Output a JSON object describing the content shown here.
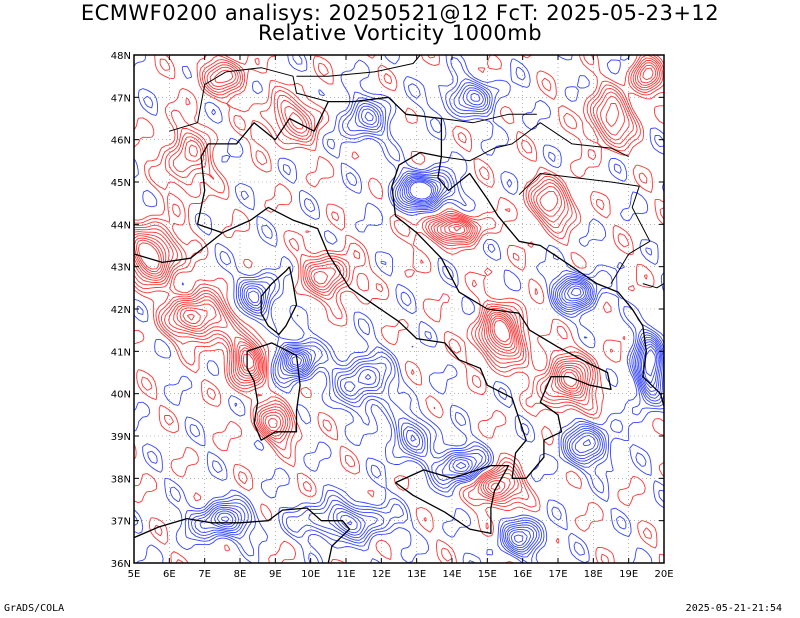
{
  "title": {
    "line1": "ECMWF0200 analisys: 20250521@12 FcT: 2025-05-23+12",
    "line2": "Relative Vorticity 1000mb"
  },
  "footer": {
    "left": "GrADS/COLA",
    "right": "2025-05-21-21:54"
  },
  "axes": {
    "lon_labels": [
      "5E",
      "6E",
      "7E",
      "8E",
      "9E",
      "10E",
      "11E",
      "12E",
      "13E",
      "14E",
      "15E",
      "16E",
      "17E",
      "18E",
      "19E",
      "20E"
    ],
    "lat_labels": [
      "36N",
      "37N",
      "38N",
      "39N",
      "40N",
      "41N",
      "42N",
      "43N",
      "44N",
      "45N",
      "46N",
      "47N",
      "48N"
    ],
    "lon_range": [
      5,
      20
    ],
    "lat_range": [
      36,
      48
    ]
  },
  "colors": {
    "positive": "#ff3333",
    "negative": "#3344ff",
    "border": "#000000",
    "grid": "#888888"
  },
  "field_centers": [
    {
      "lon": 5.5,
      "lat": 43.3,
      "sign": 1,
      "amp": 1.0,
      "sx": 0.7,
      "sy": 0.6
    },
    {
      "lon": 6.8,
      "lat": 41.8,
      "sign": 1,
      "amp": 0.9,
      "sx": 0.8,
      "sy": 0.5
    },
    {
      "lon": 8.2,
      "lat": 40.8,
      "sign": 1,
      "amp": 0.8,
      "sx": 0.5,
      "sy": 0.6
    },
    {
      "lon": 9.6,
      "lat": 40.8,
      "sign": -1,
      "amp": 0.9,
      "sx": 0.5,
      "sy": 0.4
    },
    {
      "lon": 9.0,
      "lat": 39.3,
      "sign": 1,
      "amp": 0.7,
      "sx": 0.5,
      "sy": 0.4
    },
    {
      "lon": 13.2,
      "lat": 44.8,
      "sign": -1,
      "amp": 1.0,
      "sx": 0.7,
      "sy": 0.4
    },
    {
      "lon": 14.0,
      "lat": 43.9,
      "sign": 1,
      "amp": 0.8,
      "sx": 0.8,
      "sy": 0.3
    },
    {
      "lon": 15.4,
      "lat": 41.4,
      "sign": 1,
      "amp": 0.9,
      "sx": 0.6,
      "sy": 0.6
    },
    {
      "lon": 17.5,
      "lat": 42.4,
      "sign": -1,
      "amp": 0.8,
      "sx": 0.6,
      "sy": 0.4
    },
    {
      "lon": 19.6,
      "lat": 40.6,
      "sign": -1,
      "amp": 0.9,
      "sx": 0.4,
      "sy": 0.8
    },
    {
      "lon": 17.3,
      "lat": 40.3,
      "sign": 1,
      "amp": 0.8,
      "sx": 0.7,
      "sy": 0.6
    },
    {
      "lon": 15.3,
      "lat": 37.8,
      "sign": 1,
      "amp": 0.8,
      "sx": 0.6,
      "sy": 0.4
    },
    {
      "lon": 14.2,
      "lat": 38.3,
      "sign": -1,
      "amp": 0.7,
      "sx": 0.7,
      "sy": 0.4
    },
    {
      "lon": 11.0,
      "lat": 37.0,
      "sign": -1,
      "amp": 0.6,
      "sx": 1.2,
      "sy": 0.4
    },
    {
      "lon": 7.5,
      "lat": 37.0,
      "sign": -1,
      "amp": 0.7,
      "sx": 0.8,
      "sy": 0.4
    },
    {
      "lon": 10.5,
      "lat": 42.8,
      "sign": 1,
      "amp": 0.6,
      "sx": 0.7,
      "sy": 0.5
    },
    {
      "lon": 8.5,
      "lat": 42.3,
      "sign": -1,
      "amp": 0.6,
      "sx": 0.5,
      "sy": 0.5
    },
    {
      "lon": 11.5,
      "lat": 40.3,
      "sign": -1,
      "amp": 0.6,
      "sx": 0.8,
      "sy": 0.6
    },
    {
      "lon": 18.5,
      "lat": 46.5,
      "sign": 1,
      "amp": 0.6,
      "sx": 0.6,
      "sy": 0.6
    },
    {
      "lon": 19.5,
      "lat": 47.5,
      "sign": 1,
      "amp": 0.6,
      "sx": 0.4,
      "sy": 0.4
    },
    {
      "lon": 9.5,
      "lat": 46.5,
      "sign": 1,
      "amp": 0.5,
      "sx": 0.8,
      "sy": 0.5
    },
    {
      "lon": 11.5,
      "lat": 46.5,
      "sign": -1,
      "amp": 0.5,
      "sx": 0.7,
      "sy": 0.5
    },
    {
      "lon": 7.5,
      "lat": 47.5,
      "sign": 1,
      "amp": 0.5,
      "sx": 0.7,
      "sy": 0.4
    },
    {
      "lon": 14.5,
      "lat": 47.0,
      "sign": -1,
      "amp": 0.5,
      "sx": 0.8,
      "sy": 0.4
    },
    {
      "lon": 16.8,
      "lat": 44.5,
      "sign": 1,
      "amp": 0.6,
      "sx": 0.6,
      "sy": 0.5
    },
    {
      "lon": 17.8,
      "lat": 38.8,
      "sign": -1,
      "amp": 0.6,
      "sx": 0.7,
      "sy": 0.5
    },
    {
      "lon": 12.8,
      "lat": 39.0,
      "sign": -1,
      "amp": 0.5,
      "sx": 0.6,
      "sy": 0.5
    },
    {
      "lon": 6.5,
      "lat": 45.5,
      "sign": 1,
      "amp": 0.5,
      "sx": 0.6,
      "sy": 0.8
    },
    {
      "lon": 16.0,
      "lat": 36.6,
      "sign": -1,
      "amp": 0.6,
      "sx": 0.6,
      "sy": 0.4
    }
  ],
  "coastlines": [
    {
      "name": "italy-mainland",
      "points": [
        [
          6.8,
          44.0
        ],
        [
          7.5,
          43.8
        ],
        [
          8.3,
          44.1
        ],
        [
          8.8,
          44.4
        ],
        [
          9.5,
          44.1
        ],
        [
          10.2,
          43.9
        ],
        [
          10.5,
          43.3
        ],
        [
          11.1,
          42.5
        ],
        [
          11.8,
          42.1
        ],
        [
          12.5,
          41.7
        ],
        [
          13.0,
          41.3
        ],
        [
          13.8,
          41.2
        ],
        [
          14.2,
          40.8
        ],
        [
          14.8,
          40.6
        ],
        [
          15.0,
          40.2
        ],
        [
          15.7,
          39.9
        ],
        [
          15.9,
          39.4
        ],
        [
          16.1,
          38.9
        ],
        [
          15.8,
          38.6
        ],
        [
          15.7,
          38.0
        ],
        [
          16.1,
          38.0
        ],
        [
          16.6,
          38.5
        ],
        [
          16.6,
          38.9
        ],
        [
          17.1,
          39.1
        ],
        [
          17.0,
          39.5
        ],
        [
          16.5,
          39.8
        ],
        [
          16.8,
          40.4
        ],
        [
          17.3,
          40.4
        ],
        [
          17.9,
          40.2
        ],
        [
          18.5,
          40.1
        ],
        [
          18.4,
          40.5
        ],
        [
          17.9,
          40.7
        ],
        [
          17.0,
          41.1
        ],
        [
          16.2,
          41.5
        ],
        [
          15.9,
          41.9
        ],
        [
          15.0,
          42.0
        ],
        [
          14.2,
          42.4
        ],
        [
          13.7,
          43.2
        ],
        [
          13.0,
          43.8
        ],
        [
          12.4,
          44.2
        ],
        [
          12.3,
          44.9
        ],
        [
          12.5,
          45.4
        ],
        [
          13.1,
          45.7
        ],
        [
          13.7,
          45.6
        ]
      ]
    },
    {
      "name": "italy-north-border",
      "points": [
        [
          6.8,
          44.0
        ],
        [
          7.0,
          44.8
        ],
        [
          6.9,
          45.6
        ],
        [
          7.1,
          45.9
        ],
        [
          7.9,
          45.9
        ],
        [
          8.4,
          46.4
        ],
        [
          9.0,
          46.0
        ],
        [
          9.4,
          46.5
        ],
        [
          10.1,
          46.2
        ],
        [
          10.5,
          46.9
        ],
        [
          11.2,
          46.9
        ],
        [
          12.2,
          47.0
        ],
        [
          12.7,
          46.6
        ],
        [
          13.7,
          46.5
        ],
        [
          13.7,
          45.6
        ]
      ]
    },
    {
      "name": "sardinia",
      "points": [
        [
          8.2,
          41.0
        ],
        [
          8.9,
          41.2
        ],
        [
          9.6,
          40.9
        ],
        [
          9.7,
          40.2
        ],
        [
          9.6,
          39.6
        ],
        [
          9.6,
          39.1
        ],
        [
          9.0,
          39.1
        ],
        [
          8.6,
          38.9
        ],
        [
          8.4,
          39.3
        ],
        [
          8.5,
          39.8
        ],
        [
          8.4,
          40.3
        ],
        [
          8.2,
          40.6
        ],
        [
          8.2,
          41.0
        ]
      ]
    },
    {
      "name": "corsica",
      "points": [
        [
          9.4,
          43.0
        ],
        [
          9.5,
          42.6
        ],
        [
          9.6,
          42.1
        ],
        [
          9.3,
          41.6
        ],
        [
          9.1,
          41.4
        ],
        [
          8.8,
          41.6
        ],
        [
          8.6,
          41.9
        ],
        [
          8.6,
          42.3
        ],
        [
          8.9,
          42.6
        ],
        [
          9.3,
          42.9
        ],
        [
          9.4,
          43.0
        ]
      ]
    },
    {
      "name": "sicily",
      "points": [
        [
          12.4,
          37.9
        ],
        [
          13.2,
          38.2
        ],
        [
          14.0,
          38.0
        ],
        [
          15.1,
          38.3
        ],
        [
          15.6,
          38.3
        ],
        [
          15.2,
          37.7
        ],
        [
          15.1,
          37.3
        ],
        [
          15.1,
          36.7
        ],
        [
          14.5,
          36.8
        ],
        [
          13.8,
          37.2
        ],
        [
          12.9,
          37.6
        ],
        [
          12.4,
          37.9
        ]
      ]
    },
    {
      "name": "balkan-coast",
      "points": [
        [
          13.7,
          45.6
        ],
        [
          13.6,
          45.1
        ],
        [
          13.9,
          44.8
        ],
        [
          14.5,
          45.2
        ],
        [
          15.0,
          44.6
        ],
        [
          15.3,
          44.2
        ],
        [
          15.9,
          43.6
        ],
        [
          16.5,
          43.5
        ],
        [
          17.4,
          43.0
        ],
        [
          18.1,
          42.6
        ],
        [
          18.7,
          42.4
        ],
        [
          19.1,
          42.0
        ],
        [
          19.4,
          41.6
        ],
        [
          19.5,
          41.0
        ],
        [
          19.4,
          40.4
        ],
        [
          19.9,
          40.0
        ],
        [
          20.0,
          39.7
        ]
      ]
    },
    {
      "name": "france-coast",
      "points": [
        [
          5.0,
          43.3
        ],
        [
          5.8,
          43.1
        ],
        [
          6.6,
          43.2
        ],
        [
          7.2,
          43.6
        ],
        [
          7.5,
          43.8
        ]
      ]
    },
    {
      "name": "tunisia-coast",
      "points": [
        [
          8.0,
          36.95
        ],
        [
          8.8,
          37.0
        ],
        [
          9.2,
          37.25
        ],
        [
          9.9,
          37.3
        ],
        [
          10.3,
          37.0
        ],
        [
          10.9,
          37.0
        ],
        [
          11.1,
          36.8
        ],
        [
          10.6,
          36.4
        ],
        [
          10.5,
          36.0
        ]
      ]
    },
    {
      "name": "algeria-coast",
      "points": [
        [
          5.0,
          36.6
        ],
        [
          5.7,
          36.85
        ],
        [
          6.5,
          37.05
        ],
        [
          7.2,
          36.95
        ],
        [
          8.0,
          36.95
        ]
      ]
    }
  ],
  "borders": [
    {
      "name": "france-swiss",
      "points": [
        [
          6.0,
          46.2
        ],
        [
          6.8,
          46.4
        ],
        [
          7.0,
          47.3
        ],
        [
          7.6,
          47.6
        ]
      ]
    },
    {
      "name": "swiss-north",
      "points": [
        [
          7.6,
          47.6
        ],
        [
          8.6,
          47.7
        ],
        [
          9.5,
          47.5
        ],
        [
          9.6,
          47.1
        ],
        [
          10.5,
          46.9
        ]
      ]
    },
    {
      "name": "austria-north",
      "points": [
        [
          9.6,
          47.5
        ],
        [
          10.5,
          47.5
        ],
        [
          11.8,
          47.6
        ],
        [
          12.9,
          47.8
        ],
        [
          13.1,
          48.0
        ]
      ]
    },
    {
      "name": "slovenia",
      "points": [
        [
          13.7,
          46.5
        ],
        [
          14.6,
          46.4
        ],
        [
          15.6,
          46.6
        ],
        [
          16.4,
          46.6
        ]
      ]
    },
    {
      "name": "croatia-inland",
      "points": [
        [
          13.7,
          45.6
        ],
        [
          14.5,
          45.5
        ],
        [
          15.2,
          45.8
        ],
        [
          15.7,
          45.9
        ],
        [
          16.5,
          46.4
        ],
        [
          17.4,
          45.9
        ],
        [
          18.5,
          45.8
        ],
        [
          19.0,
          45.6
        ]
      ]
    },
    {
      "name": "bosnia",
      "points": [
        [
          15.9,
          44.7
        ],
        [
          16.5,
          45.2
        ],
        [
          17.5,
          45.1
        ],
        [
          18.5,
          45.0
        ],
        [
          19.3,
          44.9
        ],
        [
          19.1,
          44.4
        ],
        [
          19.6,
          43.6
        ],
        [
          19.0,
          43.3
        ],
        [
          18.5,
          42.6
        ]
      ]
    },
    {
      "name": "montenegro-albania",
      "points": [
        [
          19.4,
          42.6
        ],
        [
          19.8,
          42.5
        ],
        [
          20.0,
          42.6
        ]
      ]
    }
  ]
}
